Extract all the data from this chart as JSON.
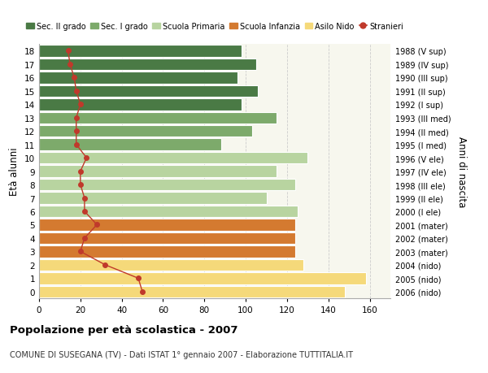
{
  "ages": [
    18,
    17,
    16,
    15,
    14,
    13,
    12,
    11,
    10,
    9,
    8,
    7,
    6,
    5,
    4,
    3,
    2,
    1,
    0
  ],
  "years": [
    "1988 (V sup)",
    "1989 (IV sup)",
    "1990 (III sup)",
    "1991 (II sup)",
    "1992 (I sup)",
    "1993 (III med)",
    "1994 (II med)",
    "1995 (I med)",
    "1996 (V ele)",
    "1997 (IV ele)",
    "1998 (III ele)",
    "1999 (II ele)",
    "2000 (I ele)",
    "2001 (mater)",
    "2002 (mater)",
    "2003 (mater)",
    "2004 (nido)",
    "2005 (nido)",
    "2006 (nido)"
  ],
  "bar_values": [
    98,
    105,
    96,
    106,
    98,
    115,
    103,
    88,
    130,
    115,
    124,
    110,
    125,
    124,
    124,
    124,
    128,
    158,
    148
  ],
  "bar_colors": [
    "#4a7a45",
    "#4a7a45",
    "#4a7a45",
    "#4a7a45",
    "#4a7a45",
    "#7daa6b",
    "#7daa6b",
    "#7daa6b",
    "#b8d4a0",
    "#b8d4a0",
    "#b8d4a0",
    "#b8d4a0",
    "#b8d4a0",
    "#d47a30",
    "#d47a30",
    "#d47a30",
    "#f5d97a",
    "#f5d97a",
    "#f5d97a"
  ],
  "stranieri": [
    14,
    15,
    17,
    18,
    20,
    18,
    18,
    18,
    23,
    20,
    20,
    22,
    22,
    28,
    22,
    20,
    32,
    48,
    50
  ],
  "stranieri_color": "#c0392b",
  "legend_labels": [
    "Sec. II grado",
    "Sec. I grado",
    "Scuola Primaria",
    "Scuola Infanzia",
    "Asilo Nido",
    "Stranieri"
  ],
  "legend_colors": [
    "#4a7a45",
    "#7daa6b",
    "#b8d4a0",
    "#d47a30",
    "#f5d97a",
    "#c0392b"
  ],
  "ylabel_left": "Età alunni",
  "ylabel_right": "Anni di nascita",
  "title": "Popolazione per età scolastica - 2007",
  "subtitle": "COMUNE DI SUSEGANA (TV) - Dati ISTAT 1° gennaio 2007 - Elaborazione TUTTITALIA.IT",
  "xlim": [
    0,
    170
  ],
  "xticks": [
    0,
    20,
    40,
    60,
    80,
    100,
    120,
    140,
    160
  ],
  "plot_bg": "#f7f7ee",
  "background_color": "#ffffff",
  "grid_color": "#cccccc"
}
